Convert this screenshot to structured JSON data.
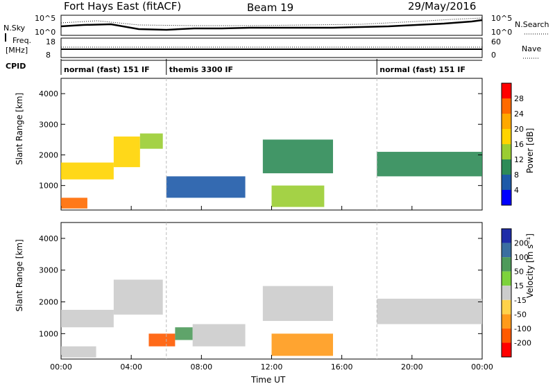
{
  "header": {
    "station": "Fort Hays East (fitACF)",
    "beam": "Beam 19",
    "date": "29/May/2016"
  },
  "strip": {
    "nsky_label": "N.Sky",
    "nsearch_label": "N.Search",
    "nsky_ticks": [
      "10^5",
      "10^0"
    ],
    "nsky_right_ticks": [
      "10^5",
      "10^0"
    ],
    "freq_label_1": "Freq.",
    "freq_label_2": "[MHz]",
    "freq_ticks": [
      "18",
      "8"
    ],
    "nave_label": "Nave",
    "nave_ticks": [
      "60",
      "0"
    ],
    "cpid_label": "CPID",
    "cpid_segments": [
      {
        "label": "normal (fast) 151 IF",
        "start_hour": 0,
        "end_hour": 6
      },
      {
        "label": "themis 3300 IF",
        "start_hour": 6,
        "end_hour": 18
      },
      {
        "label": "normal (fast) 151 IF",
        "start_hour": 18,
        "end_hour": 24
      }
    ]
  },
  "power_scale": {
    "label": "Power [dB]",
    "ticks": [
      "28",
      "24",
      "20",
      "16",
      "12",
      "8",
      "4"
    ],
    "colors": [
      "#ff0000",
      "#ff6a00",
      "#ffa800",
      "#ffd400",
      "#9acd32",
      "#2e8b57",
      "#1e5aa8",
      "#0000ff"
    ]
  },
  "velocity_scale": {
    "label": "Velocity [m s⁻¹]",
    "ticks": [
      "200",
      "100",
      "50",
      "15",
      "-15",
      "-50",
      "-100",
      "-200"
    ],
    "colors": [
      "#1e2ca8",
      "#3a6ea0",
      "#4e9a5a",
      "#7dd23c",
      "#cccccc",
      "#ffd24a",
      "#ff9a1a",
      "#ff5a00",
      "#ff0000"
    ]
  },
  "chart_data": [
    {
      "type": "heatmap",
      "name": "power",
      "ylabel": "Slant Range [km]",
      "xlabel": "",
      "ylim": [
        200,
        4500
      ],
      "xlim_hours": [
        0,
        24
      ],
      "x_ticks": [
        "00:00",
        "04:00",
        "08:00",
        "12:00",
        "16:00",
        "20:00",
        "00:00"
      ],
      "y_ticks": [
        "1000",
        "2000",
        "3000",
        "4000"
      ],
      "regions": [
        {
          "t0": 0.0,
          "t1": 3.0,
          "r0": 1200,
          "r1": 1750,
          "level": 18
        },
        {
          "t0": 3.0,
          "t1": 4.5,
          "r0": 1600,
          "r1": 2600,
          "level": 20
        },
        {
          "t0": 4.5,
          "t1": 5.8,
          "r0": 2200,
          "r1": 2700,
          "level": 16
        },
        {
          "t0": 0.0,
          "t1": 1.5,
          "r0": 250,
          "r1": 600,
          "level": 26
        },
        {
          "t0": 6.0,
          "t1": 10.5,
          "r0": 600,
          "r1": 1300,
          "level": 6
        },
        {
          "t0": 11.5,
          "t1": 15.5,
          "r0": 1400,
          "r1": 2500,
          "level": 12
        },
        {
          "t0": 12.0,
          "t1": 15.0,
          "r0": 300,
          "r1": 1000,
          "level": 14
        },
        {
          "t0": 18.0,
          "t1": 24.0,
          "r0": 1300,
          "r1": 2100,
          "level": 12
        }
      ]
    },
    {
      "type": "heatmap",
      "name": "velocity",
      "ylabel": "Slant Range [km]",
      "xlabel": "Time UT",
      "ylim": [
        200,
        4500
      ],
      "xlim_hours": [
        0,
        24
      ],
      "x_ticks": [
        "00:00",
        "04:00",
        "08:00",
        "12:00",
        "16:00",
        "20:00",
        "00:00"
      ],
      "y_ticks": [
        "1000",
        "2000",
        "3000",
        "4000"
      ],
      "regions": [
        {
          "t0": 0.0,
          "t1": 3.0,
          "r0": 1200,
          "r1": 1750,
          "level": 0
        },
        {
          "t0": 3.0,
          "t1": 5.8,
          "r0": 1600,
          "r1": 2700,
          "level": 0
        },
        {
          "t0": 0.0,
          "t1": 2.0,
          "r0": 250,
          "r1": 600,
          "level": 0
        },
        {
          "t0": 5.0,
          "t1": 6.5,
          "r0": 600,
          "r1": 1000,
          "level": -110
        },
        {
          "t0": 6.5,
          "t1": 7.5,
          "r0": 800,
          "r1": 1200,
          "level": 60
        },
        {
          "t0": 7.5,
          "t1": 10.5,
          "r0": 600,
          "r1": 1300,
          "level": 0
        },
        {
          "t0": 11.5,
          "t1": 15.5,
          "r0": 1400,
          "r1": 2500,
          "level": 0
        },
        {
          "t0": 12.0,
          "t1": 15.5,
          "r0": 300,
          "r1": 1000,
          "level": -60
        },
        {
          "t0": 18.0,
          "t1": 24.0,
          "r0": 1300,
          "r1": 2100,
          "level": 0
        }
      ]
    }
  ]
}
